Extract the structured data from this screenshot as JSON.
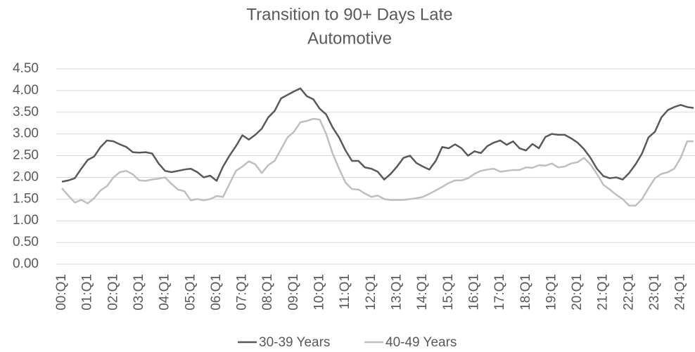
{
  "chart_data": {
    "type": "line",
    "title": [
      "Transition to 90+ Days Late",
      "Automotive"
    ],
    "categories": [
      "00:Q1",
      null,
      null,
      null,
      "01:Q1",
      null,
      null,
      null,
      "02:Q1",
      null,
      null,
      null,
      "03:Q1",
      null,
      null,
      null,
      "04:Q1",
      null,
      null,
      null,
      "05:Q1",
      null,
      null,
      null,
      "06:Q1",
      null,
      null,
      null,
      "07:Q1",
      null,
      null,
      null,
      "08:Q1",
      null,
      null,
      null,
      "09:Q1",
      null,
      null,
      null,
      "10:Q1",
      null,
      null,
      null,
      "11:Q1",
      null,
      null,
      null,
      "12:Q1",
      null,
      null,
      null,
      "13:Q1",
      null,
      null,
      null,
      "14:Q1",
      null,
      null,
      null,
      "15:Q1",
      null,
      null,
      null,
      "16:Q1",
      null,
      null,
      null,
      "17:Q1",
      null,
      null,
      null,
      "18:Q1",
      null,
      null,
      null,
      "19:Q1",
      null,
      null,
      null,
      "20:Q1",
      null,
      null,
      null,
      "21:Q1",
      null,
      null,
      null,
      "22:Q1",
      null,
      null,
      null,
      "23:Q1",
      null,
      null,
      null,
      "24:Q1",
      null,
      null
    ],
    "series": [
      {
        "name": "30-39 Years",
        "color": "#595959",
        "values": [
          1.9,
          1.93,
          1.98,
          2.2,
          2.4,
          2.48,
          2.7,
          2.85,
          2.83,
          2.76,
          2.7,
          2.58,
          2.57,
          2.58,
          2.55,
          2.32,
          2.15,
          2.12,
          2.15,
          2.18,
          2.2,
          2.12,
          2.0,
          2.04,
          1.92,
          2.25,
          2.5,
          2.72,
          2.97,
          2.87,
          2.98,
          3.12,
          3.38,
          3.53,
          3.82,
          3.9,
          3.98,
          4.05,
          3.87,
          3.8,
          3.58,
          3.45,
          3.15,
          2.92,
          2.62,
          2.38,
          2.38,
          2.23,
          2.2,
          2.13,
          1.95,
          2.08,
          2.25,
          2.45,
          2.5,
          2.33,
          2.25,
          2.18,
          2.38,
          2.7,
          2.67,
          2.76,
          2.67,
          2.5,
          2.6,
          2.56,
          2.72,
          2.8,
          2.85,
          2.75,
          2.83,
          2.67,
          2.62,
          2.77,
          2.67,
          2.93,
          3.0,
          2.98,
          2.98,
          2.9,
          2.8,
          2.65,
          2.45,
          2.2,
          2.03,
          1.98,
          2.0,
          1.95,
          2.1,
          2.3,
          2.55,
          2.92,
          3.05,
          3.38,
          3.55,
          3.62,
          3.67,
          3.62,
          3.6
        ]
      },
      {
        "name": "40-49 Years",
        "color": "#bfbfbf",
        "values": [
          1.75,
          1.58,
          1.42,
          1.48,
          1.4,
          1.52,
          1.7,
          1.8,
          2.0,
          2.12,
          2.15,
          2.07,
          1.93,
          1.92,
          1.95,
          1.97,
          2.0,
          1.85,
          1.72,
          1.68,
          1.47,
          1.5,
          1.47,
          1.5,
          1.57,
          1.55,
          1.85,
          2.15,
          2.25,
          2.37,
          2.3,
          2.1,
          2.28,
          2.38,
          2.65,
          2.92,
          3.05,
          3.27,
          3.3,
          3.35,
          3.33,
          3.0,
          2.55,
          2.2,
          1.88,
          1.73,
          1.72,
          1.63,
          1.55,
          1.58,
          1.5,
          1.48,
          1.48,
          1.48,
          1.5,
          1.52,
          1.55,
          1.62,
          1.7,
          1.78,
          1.87,
          1.93,
          1.93,
          1.98,
          2.08,
          2.15,
          2.18,
          2.2,
          2.13,
          2.15,
          2.17,
          2.17,
          2.23,
          2.22,
          2.28,
          2.27,
          2.32,
          2.23,
          2.25,
          2.32,
          2.35,
          2.45,
          2.3,
          2.08,
          1.83,
          1.72,
          1.6,
          1.5,
          1.35,
          1.35,
          1.5,
          1.75,
          1.98,
          2.08,
          2.12,
          2.2,
          2.45,
          2.83,
          2.83
        ]
      }
    ],
    "ylim": [
      0,
      4.5
    ],
    "yticks": [
      {
        "value": 0,
        "label": "0.00"
      },
      {
        "value": 0.5,
        "label": "0.50"
      },
      {
        "value": 1,
        "label": "1.00"
      },
      {
        "value": 1.5,
        "label": "1.50"
      },
      {
        "value": 2,
        "label": "2.00"
      },
      {
        "value": 2.5,
        "label": "2.50"
      },
      {
        "value": 3,
        "label": "3.00"
      },
      {
        "value": 3.5,
        "label": "3.50"
      },
      {
        "value": 4,
        "label": "4.00"
      },
      {
        "value": 4.5,
        "label": "4.50"
      }
    ],
    "grid": true,
    "legend": "bottom"
  }
}
